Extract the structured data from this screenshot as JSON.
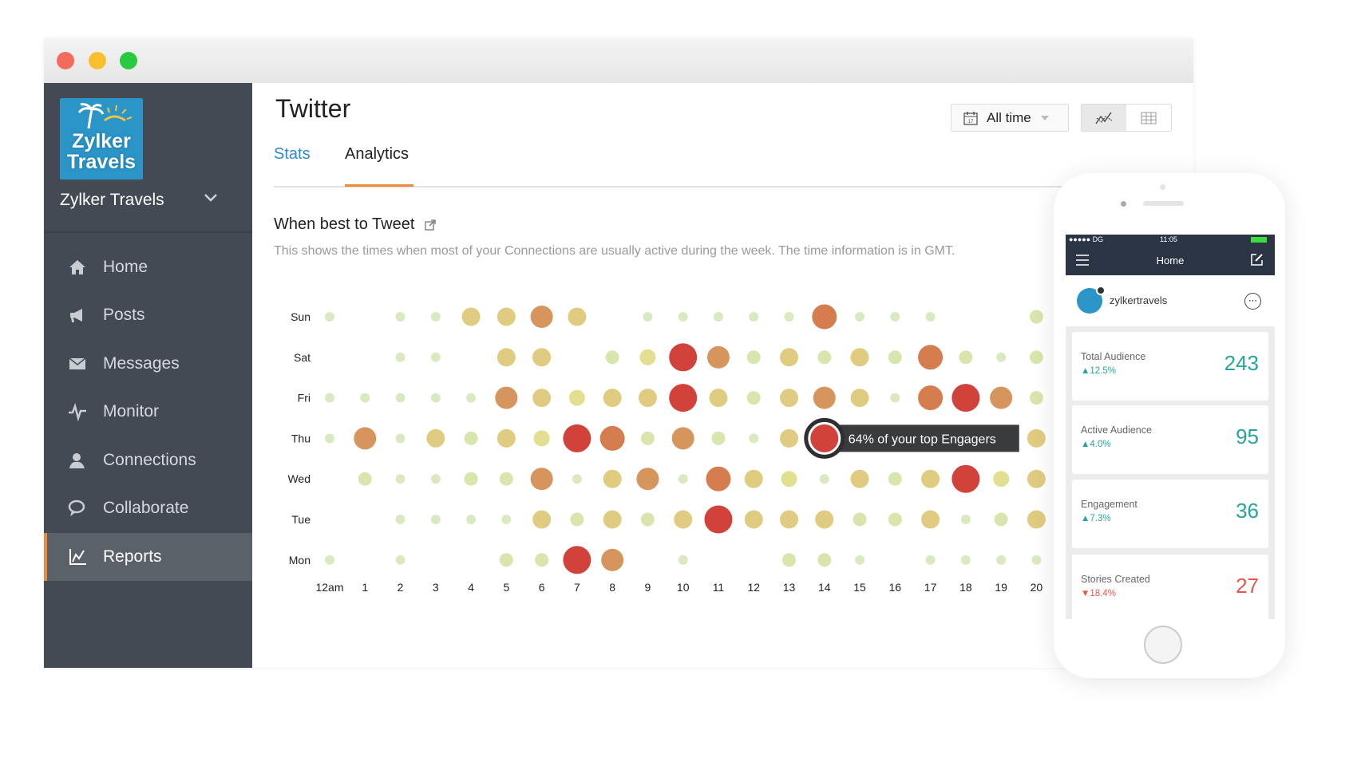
{
  "window": {
    "traffic_lights": [
      "#f26b5b",
      "#f9c02e",
      "#29c940"
    ]
  },
  "sidebar": {
    "logo_text": [
      "Zylker",
      "Travels"
    ],
    "brand": "Zylker Travels",
    "items": [
      {
        "label": "Home",
        "icon": "home-icon"
      },
      {
        "label": "Posts",
        "icon": "megaphone-icon"
      },
      {
        "label": "Messages",
        "icon": "envelope-icon"
      },
      {
        "label": "Monitor",
        "icon": "pulse-icon"
      },
      {
        "label": "Connections",
        "icon": "user-icon"
      },
      {
        "label": "Collaborate",
        "icon": "chat-icon"
      },
      {
        "label": "Reports",
        "icon": "chart-icon",
        "active": true
      }
    ]
  },
  "header": {
    "title": "Twitter",
    "date_filter": "All time",
    "views": [
      "line-chart-icon",
      "table-icon"
    ]
  },
  "tabs": [
    {
      "label": "Stats"
    },
    {
      "label": "Analytics",
      "active": true
    }
  ],
  "section": {
    "title": "When best to Tweet",
    "description": "This shows the times when most of your Connections are usually active during the week. The time information is in GMT."
  },
  "chart_data": {
    "type": "heatmap",
    "encoding": "bubble size and color by activity level (1 = low, 7 = high)",
    "x": [
      "12am",
      "1",
      "2",
      "3",
      "4",
      "5",
      "6",
      "7",
      "8",
      "9",
      "10",
      "11",
      "12",
      "13",
      "14",
      "15",
      "16",
      "17",
      "18",
      "19",
      "20"
    ],
    "y": [
      "Sun",
      "Sat",
      "Fri",
      "Thu",
      "Wed",
      "Tue",
      "Mon"
    ],
    "values": [
      [
        1,
        null,
        1,
        1,
        4,
        4,
        5,
        4,
        null,
        1,
        1,
        1,
        1,
        1,
        6,
        1,
        1,
        1,
        null,
        null,
        2
      ],
      [
        null,
        null,
        1,
        1,
        null,
        4,
        4,
        null,
        2,
        3,
        7,
        5,
        2,
        4,
        2,
        4,
        2,
        6,
        2,
        1,
        2
      ],
      [
        1,
        1,
        1,
        1,
        1,
        5,
        4,
        3,
        4,
        4,
        7,
        4,
        2,
        4,
        5,
        4,
        1,
        6,
        7,
        5,
        2
      ],
      [
        1,
        5,
        1,
        4,
        2,
        4,
        3,
        7,
        6,
        2,
        5,
        2,
        1,
        4,
        7,
        null,
        null,
        null,
        null,
        null,
        4
      ],
      [
        null,
        2,
        1,
        1,
        2,
        2,
        5,
        1,
        4,
        5,
        1,
        6,
        4,
        3,
        1,
        4,
        2,
        4,
        7,
        3,
        4
      ],
      [
        null,
        null,
        1,
        1,
        1,
        1,
        4,
        2,
        4,
        2,
        4,
        7,
        4,
        4,
        4,
        2,
        2,
        4,
        1,
        2,
        4
      ],
      [
        1,
        null,
        1,
        null,
        null,
        2,
        2,
        7,
        5,
        null,
        1,
        null,
        null,
        2,
        2,
        1,
        null,
        1,
        1,
        1,
        1
      ]
    ],
    "level_colors": [
      "#d9eac0",
      "#d8e5ad",
      "#e2df90",
      "#e0cc80",
      "#d6955c",
      "#d57d4e",
      "#d1433a"
    ],
    "highlight": {
      "day": "Thu",
      "hour": "14",
      "tooltip": "64% of your top Engagers"
    }
  },
  "phone": {
    "status": {
      "carrier": "●●●●● DG",
      "time": "11:05"
    },
    "nav_title": "Home",
    "profile": "zylkertravels",
    "cards": [
      {
        "label": "Total Audience",
        "change": "12.5%",
        "direction": "up",
        "value": "243"
      },
      {
        "label": "Active Audience",
        "change": "4.0%",
        "direction": "up",
        "value": "95"
      },
      {
        "label": "Engagement",
        "change": "7.3%",
        "direction": "up",
        "value": "36"
      },
      {
        "label": "Stories Created",
        "change": "18.4%",
        "direction": "down",
        "value": "27"
      }
    ],
    "colors": {
      "up": "#26a69a",
      "down": "#e8574b"
    }
  }
}
